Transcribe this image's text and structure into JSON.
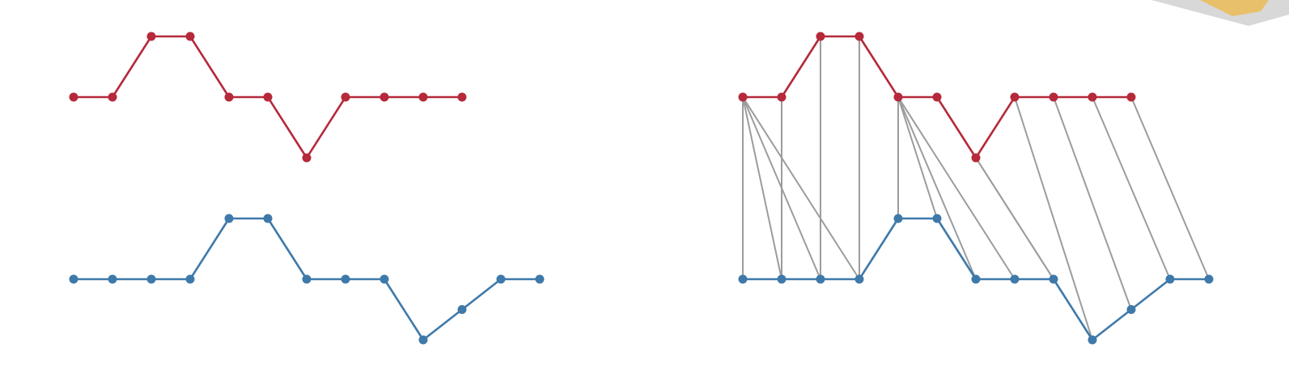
{
  "colors": {
    "series_a": "#b5293a",
    "series_b": "#3f79aa",
    "warp_link": "#9c9c9c",
    "background": "#ffffff"
  },
  "series_a": {
    "values": [
      1,
      1,
      2,
      2,
      1,
      1,
      0,
      1,
      1,
      1,
      1
    ]
  },
  "series_b": {
    "values": [
      1,
      1,
      1,
      1,
      2,
      2,
      1,
      1,
      1,
      0,
      0.5,
      1,
      1
    ]
  },
  "warping_path": [
    [
      0,
      0
    ],
    [
      0,
      1
    ],
    [
      0,
      2
    ],
    [
      0,
      3
    ],
    [
      1,
      1
    ],
    [
      2,
      2
    ],
    [
      3,
      3
    ],
    [
      4,
      4
    ],
    [
      4,
      5
    ],
    [
      4,
      6
    ],
    [
      4,
      7
    ],
    [
      5,
      8
    ],
    [
      6,
      8
    ],
    [
      7,
      9
    ],
    [
      8,
      10
    ],
    [
      9,
      11
    ],
    [
      10,
      12
    ]
  ]
}
